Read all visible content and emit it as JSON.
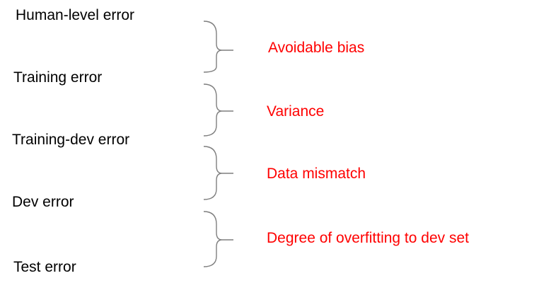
{
  "levels": [
    "Human-level error",
    "Training error",
    "Training-dev error",
    "Dev error",
    "Test error"
  ],
  "gaps": [
    "Avoidable bias",
    "Variance",
    "Data mismatch",
    "Degree of overfitting to dev set"
  ],
  "colors": {
    "level_text": "#000000",
    "gap_text": "#ff0000",
    "brace": "#7f7f7f"
  }
}
